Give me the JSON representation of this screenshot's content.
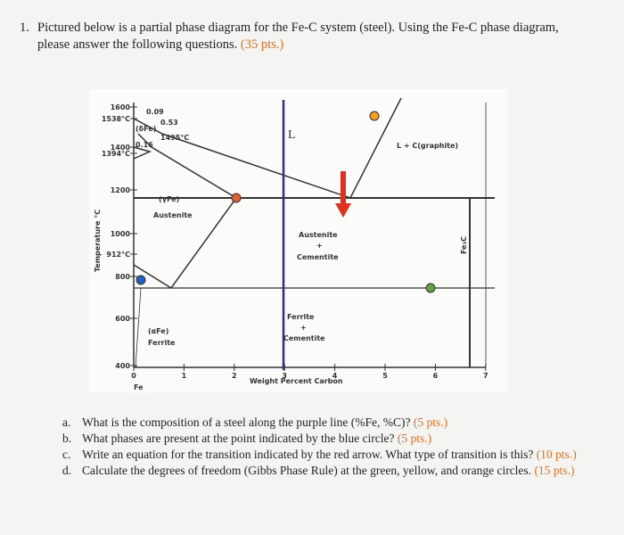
{
  "question": {
    "number": "1.",
    "line1": "Pictured below is a partial phase diagram for the Fe-C system (steel). Using the Fe-C phase diagram,",
    "line2": "please answer the following questions.",
    "points": "(35 pts.)"
  },
  "diagram": {
    "y_axis_title": "Temperature °C",
    "y_ticks": [
      "1600",
      "1538°C",
      "1400",
      "1394°C",
      "1200",
      "1000",
      "912°C",
      "800",
      "600",
      "400"
    ],
    "x_ticks": [
      "0",
      "1",
      "2",
      "3",
      "4",
      "5",
      "6",
      "7"
    ],
    "delta": "(δFe)",
    "c009": "0.09",
    "c053": "0.53",
    "t1495": "1495°C",
    "c016": "0.16",
    "gamma": "(γFe)",
    "austenite": "Austenite",
    "liquid": "L",
    "l_graphite": "L + C(graphite)",
    "aus_cem_1": "Austenite",
    "aus_cem_2": "+",
    "aus_cem_3": "Cementite",
    "fe3c": "Fe₃C",
    "fer_cem_1": "Ferrite",
    "fer_cem_2": "+",
    "fer_cem_3": "Cementite",
    "alpha": "(αFe)",
    "ferrite": "Ferrite",
    "fe": "Fe",
    "x_axis_title": "Weight Percent Carbon"
  },
  "parts": [
    {
      "letter": "a.",
      "text": "What is the composition of a steel along the purple line (%Fe, %C)?",
      "points": "(5 pts.)"
    },
    {
      "letter": "b.",
      "text": "What phases are present at the point indicated by the blue circle?",
      "points": "(5 pts.)"
    },
    {
      "letter": "c.",
      "text": "Write an equation for the transition indicated by the red arrow. What type of transition is this?",
      "points": "(10 pts.)"
    },
    {
      "letter": "d.",
      "text": "Calculate the degrees of freedom (Gibbs Phase Rule) at the green, yellow, and orange circles.",
      "points": "(15 pts.)"
    }
  ]
}
